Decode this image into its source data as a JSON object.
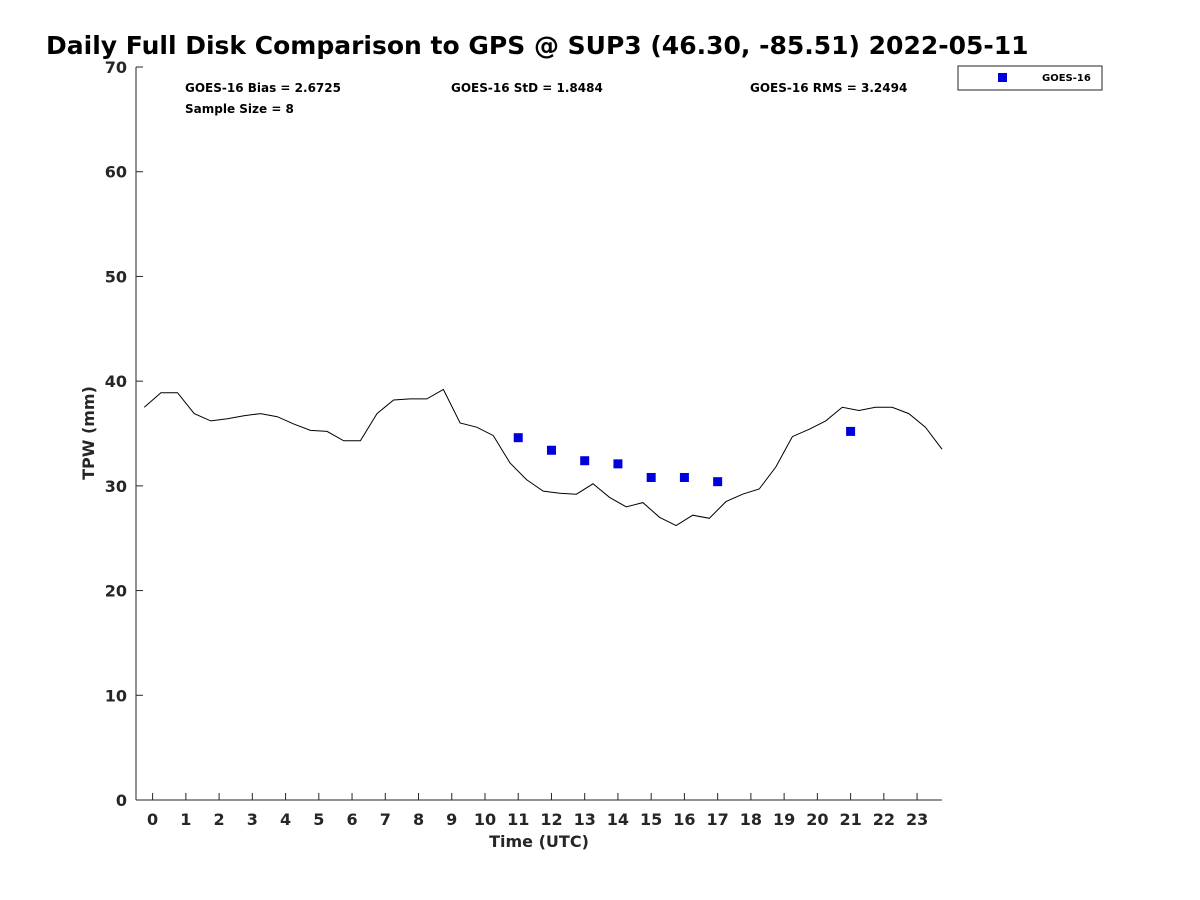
{
  "chart_data": {
    "type": "scatter",
    "title": "Daily Full Disk Comparison to GPS @ SUP3 (46.30, -85.51) 2022-05-11",
    "xlabel": "Time (UTC)",
    "ylabel": "TPW (mm)",
    "xlim": [
      -0.5,
      23.75
    ],
    "ylim": [
      0,
      70
    ],
    "x_ticks": [
      0,
      1,
      2,
      3,
      4,
      5,
      6,
      7,
      8,
      9,
      10,
      11,
      12,
      13,
      14,
      15,
      16,
      17,
      18,
      19,
      20,
      21,
      22,
      23
    ],
    "y_ticks": [
      0,
      10,
      20,
      30,
      40,
      50,
      60,
      70
    ],
    "grid": false,
    "legend_position": "top-right, outside plot",
    "stats": {
      "bias": "GOES-16 Bias = 2.6725",
      "std": "GOES-16 StD = 1.8484",
      "rms": "GOES-16 RMS = 3.2494",
      "sample": "Sample Size = 8"
    },
    "series": [
      {
        "name": "",
        "kind": "line",
        "color": "#000000",
        "x": [
          -0.25,
          0.25,
          0.75,
          1.25,
          1.75,
          2.25,
          2.75,
          3.25,
          3.75,
          4.25,
          4.75,
          5.25,
          5.75,
          6.25,
          6.75,
          7.25,
          7.75,
          8.25,
          8.75,
          9.25,
          9.75,
          10.25,
          10.75,
          11.25,
          11.75,
          12.25,
          12.75,
          13.25,
          13.75,
          14.25,
          14.75,
          15.25,
          15.75,
          16.25,
          16.75,
          17.25,
          17.75,
          18.25,
          18.75,
          19.25,
          19.75,
          20.25,
          20.75,
          21.25,
          21.75,
          22.25,
          22.75,
          23.25,
          23.75
        ],
        "values": [
          37.5,
          38.9,
          38.9,
          36.9,
          36.2,
          36.4,
          36.7,
          36.9,
          36.6,
          35.9,
          35.3,
          35.2,
          34.3,
          34.3,
          36.9,
          38.2,
          38.3,
          38.3,
          39.2,
          36.0,
          35.6,
          34.8,
          32.2,
          30.6,
          29.5,
          29.3,
          29.2,
          30.2,
          28.9,
          28.0,
          28.4,
          27.0,
          26.2,
          27.2,
          26.9,
          28.5,
          29.2,
          29.7,
          31.8,
          34.7,
          35.4,
          36.2,
          37.5,
          37.2,
          37.5,
          37.5,
          36.9,
          35.6,
          33.5
        ]
      },
      {
        "name": "GOES-16",
        "kind": "scatter",
        "color": "#0000dd",
        "x": [
          11,
          12,
          13,
          14,
          15,
          16,
          17,
          21
        ],
        "values": [
          34.6,
          33.4,
          32.4,
          32.1,
          30.8,
          30.8,
          30.4,
          35.2
        ]
      }
    ]
  }
}
